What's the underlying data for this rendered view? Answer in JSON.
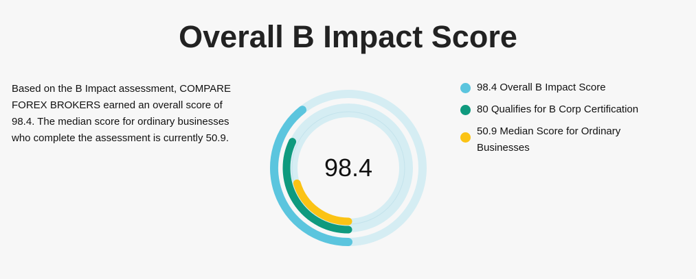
{
  "title": "Overall B Impact Score",
  "description": "Based on the B Impact assessment, COMPARE FOREX BROKERS earned an overall score of 98.4. The median score for ordinary businesses who complete the assessment is currently 50.9.",
  "chart_data": {
    "type": "radial-bar",
    "center_label": "98.4",
    "range": [
      0,
      250
    ],
    "series": [
      {
        "name": "98.4 Overall B Impact Score",
        "value": 98.4,
        "color": "#5bc5de"
      },
      {
        "name": "80 Qualifies for B Corp Certification",
        "value": 80,
        "color": "#0f9a7e"
      },
      {
        "name": "50.9 Median Score for Ordinary Businesses",
        "value": 50.9,
        "color": "#fbc315"
      }
    ],
    "track_color": "#d5edf3",
    "legend_position": "right"
  }
}
